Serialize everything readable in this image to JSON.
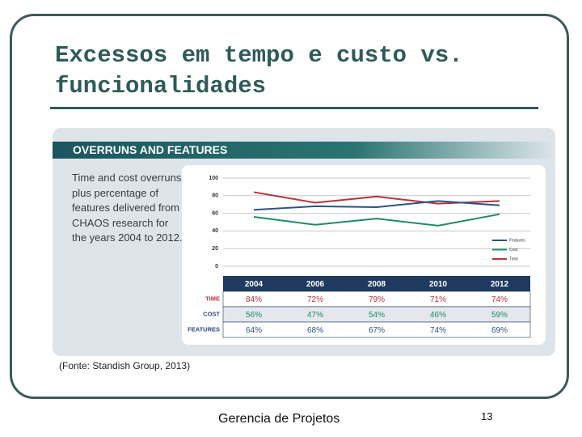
{
  "slide_title": "Excessos em tempo e custo vs. funcionalidades",
  "source": "(Fonte: Standish Group, 2013)",
  "footer": "Gerencia de Projetos",
  "page_number": "13",
  "chart_data": {
    "type": "line",
    "title": "OVERRUNS AND FEATURES",
    "subtitle": "Time and cost overruns, plus percentage of features delivered from CHAOS research for the years 2004 to 2012.",
    "categories": [
      "2004",
      "2006",
      "2008",
      "2010",
      "2012"
    ],
    "ylim": [
      0,
      100
    ],
    "yticks": [
      0,
      20,
      40,
      60,
      80,
      100
    ],
    "grid": true,
    "legend": "lower right",
    "row_labels": [
      "TIME",
      "COST",
      "FEATURES"
    ],
    "series": [
      {
        "name": "Time",
        "color": "#b8333b",
        "values": [
          84,
          72,
          79,
          71,
          74
        ],
        "value_labels": [
          "84%",
          "72%",
          "79%",
          "71%",
          "74%"
        ]
      },
      {
        "name": "Cost",
        "color": "#1f8a6c",
        "values": [
          56,
          47,
          54,
          46,
          59
        ],
        "value_labels": [
          "56%",
          "47%",
          "54%",
          "46%",
          "59%"
        ]
      },
      {
        "name": "Features",
        "color": "#2d5384",
        "values": [
          64,
          68,
          67,
          74,
          69
        ],
        "value_labels": [
          "64%",
          "68%",
          "67%",
          "74%",
          "69%"
        ]
      }
    ]
  }
}
